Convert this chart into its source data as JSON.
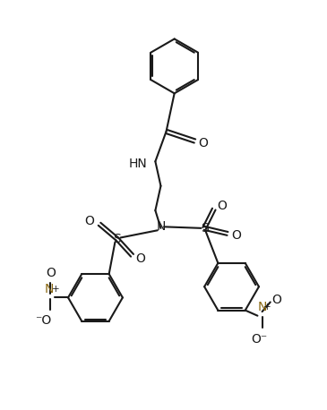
{
  "bg_color": "#ffffff",
  "line_color": "#1a1a1a",
  "n_color": "#8B6914",
  "bond_lw": 1.5,
  "figsize": [
    3.65,
    4.58
  ],
  "dpi": 100,
  "xlim": [
    -1,
    11
  ],
  "ylim": [
    -0.5,
    13.5
  ]
}
